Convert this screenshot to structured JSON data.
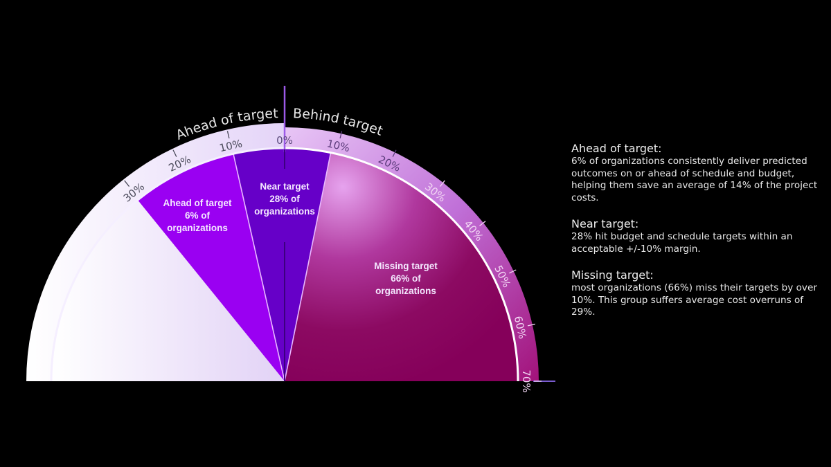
{
  "chart_data": {
    "type": "semicircle-gauge",
    "title": "",
    "center": [
      411,
      551
    ],
    "outer_radius": 373,
    "inner_radius": 337,
    "deg_per_percent": 1.2857,
    "axis": {
      "left_title": "Ahead of target",
      "right_title": "Behind target",
      "zero_label": "0%",
      "left_ticks": [
        "10%",
        "20%",
        "30%"
      ],
      "right_ticks": [
        "10%",
        "20%",
        "30%",
        "40%",
        "50%",
        "60%",
        "70%"
      ]
    },
    "segments": [
      {
        "name": "Ahead of target",
        "share_pct": 6,
        "label_lines": [
          "Ahead of target",
          "6% of",
          "organizations"
        ],
        "start_deg": -39,
        "end_deg": -12.7,
        "color": "#9a00f2"
      },
      {
        "name": "Near target",
        "share_pct": 28,
        "label_lines": [
          "Near target",
          "28% of",
          "organizations"
        ],
        "start_deg": -12.7,
        "end_deg": 11.4,
        "color": "#6600c8"
      },
      {
        "name": "Missing target",
        "share_pct": 66,
        "label_lines": [
          "Missing target",
          "66% of",
          "organizations"
        ],
        "start_deg": 11.4,
        "end_deg": 90,
        "color": "#8e0a5e"
      }
    ]
  },
  "notes": [
    {
      "title": "Ahead of target:",
      "body": "6% of organizations consistently deliver predicted outcomes on or ahead of schedule and budget, helping them save an average of 14% of the project costs."
    },
    {
      "title": "Near target:",
      "body": "28% hit budget and schedule targets within an acceptable +/-10% margin."
    },
    {
      "title": "Missing target:",
      "body": "most organizations (66%) miss their targets by over 10%. This group suffers average cost overruns of 29%."
    }
  ]
}
